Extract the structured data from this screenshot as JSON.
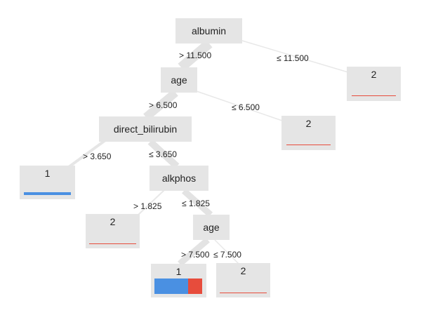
{
  "colors": {
    "class_1": "#4a90e2",
    "class_2": "#e74c3c",
    "node_bg": "#e5e5e5",
    "edge_thin": "#e6e6e6",
    "edge_thick": "#e3e3e3"
  },
  "tree": {
    "splits": {
      "albumin": "albumin",
      "age_top": "age",
      "direct_bilirubin": "direct_bilirubin",
      "alkphos": "alkphos",
      "age_bottom": "age"
    },
    "edges": {
      "albumin_gt": "> 11.500",
      "albumin_le": "≤ 11.500",
      "age_top_gt": "> 6.500",
      "age_top_le": "≤ 6.500",
      "bilirubin_gt": "> 3.650",
      "bilirubin_le": "≤ 3.650",
      "alkphos_gt": "> 1.825",
      "alkphos_le": "≤ 1.825",
      "age_bottom_gt": "> 7.500",
      "age_bottom_le": "≤ 7.500"
    },
    "leaves": {
      "albumin_le": {
        "label": "2",
        "class_1_share": 0.0
      },
      "age_top_le": {
        "label": "2",
        "class_1_share": 0.0
      },
      "bilirubin_gt": {
        "label": "1",
        "class_1_share": 1.0
      },
      "alkphos_gt": {
        "label": "2",
        "class_1_share": 0.0
      },
      "age_bottom_gt": {
        "label": "1",
        "class_1_share": 0.7
      },
      "age_bottom_le": {
        "label": "2",
        "class_1_share": 0.0
      }
    }
  }
}
